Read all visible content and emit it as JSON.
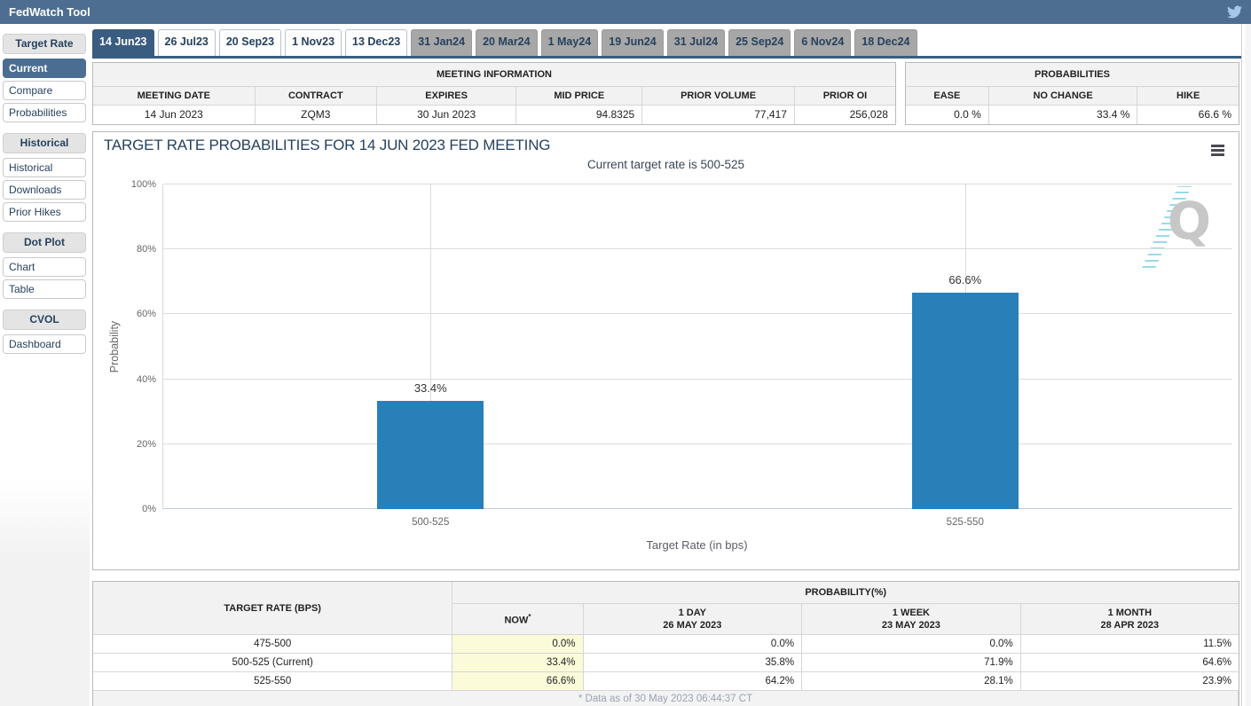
{
  "colors": {
    "topbar": "#4d6e90",
    "active_tab": "#3a5c81",
    "active_item": "#4b6d92",
    "tab_gray": "#a7a7a7",
    "navy_text": "#26415e",
    "bar": "#2980b9",
    "now_highlight": "#fbfbda"
  },
  "header": {
    "title": "FedWatch Tool",
    "social_icon": "twitter-bird"
  },
  "sidebar": {
    "groups": [
      {
        "header": "Target Rate",
        "items": [
          {
            "label": "Current",
            "active": true
          },
          {
            "label": "Compare",
            "active": false
          },
          {
            "label": "Probabilities",
            "active": false
          }
        ]
      },
      {
        "header": "Historical",
        "items": [
          {
            "label": "Historical",
            "active": false
          },
          {
            "label": "Downloads",
            "active": false
          },
          {
            "label": "Prior Hikes",
            "active": false
          }
        ]
      },
      {
        "header": "Dot Plot",
        "items": [
          {
            "label": "Chart",
            "active": false
          },
          {
            "label": "Table",
            "active": false
          }
        ]
      },
      {
        "header": "CVOL",
        "items": [
          {
            "label": "Dashboard",
            "active": false
          }
        ]
      }
    ]
  },
  "tabs": [
    {
      "label": "14 Jun23",
      "state": "active"
    },
    {
      "label": "26 Jul23",
      "state": "light"
    },
    {
      "label": "20 Sep23",
      "state": "light"
    },
    {
      "label": "1 Nov23",
      "state": "light"
    },
    {
      "label": "13 Dec23",
      "state": "light"
    },
    {
      "label": "31 Jan24",
      "state": "gray"
    },
    {
      "label": "20 Mar24",
      "state": "gray"
    },
    {
      "label": "1 May24",
      "state": "gray"
    },
    {
      "label": "19 Jun24",
      "state": "gray"
    },
    {
      "label": "31 Jul24",
      "state": "gray"
    },
    {
      "label": "25 Sep24",
      "state": "gray"
    },
    {
      "label": "6 Nov24",
      "state": "gray"
    },
    {
      "label": "18 Dec24",
      "state": "gray"
    }
  ],
  "meeting_info": {
    "title": "MEETING INFORMATION",
    "columns": [
      "MEETING DATE",
      "CONTRACT",
      "EXPIRES",
      "MID PRICE",
      "PRIOR VOLUME",
      "PRIOR OI"
    ],
    "values": [
      "14 Jun 2023",
      "ZQM3",
      "30 Jun 2023",
      "94.8325",
      "77,417",
      "256,028"
    ]
  },
  "probabilities_summary": {
    "title": "PROBABILITIES",
    "columns": [
      "EASE",
      "NO CHANGE",
      "HIKE"
    ],
    "values": [
      "0.0 %",
      "33.4 %",
      "66.6 %"
    ]
  },
  "chart": {
    "menu_icon": "hamburger-menu",
    "watermark_letter": "Q"
  },
  "chart_data": {
    "type": "bar",
    "title": "TARGET RATE PROBABILITIES FOR 14 JUN 2023 FED MEETING",
    "subtitle": "Current target rate is 500-525",
    "categories": [
      "500-525",
      "525-550"
    ],
    "values": [
      33.4,
      66.6
    ],
    "labels": [
      "33.4%",
      "66.6%"
    ],
    "xlabel": "Target Rate (in bps)",
    "ylabel": "Probability",
    "ylim": [
      0,
      100
    ],
    "yticks": [
      "0%",
      "20%",
      "40%",
      "60%",
      "80%",
      "100%"
    ],
    "grid": true,
    "legend": false,
    "bar_color": "#2980b9"
  },
  "prob_table": {
    "rate_header": "TARGET RATE (BPS)",
    "prob_header": "PROBABILITY(%)",
    "col_headers": [
      {
        "line1": "NOW",
        "sup": "*",
        "line2": ""
      },
      {
        "line1": "1 DAY",
        "line2": "26 MAY 2023"
      },
      {
        "line1": "1 WEEK",
        "line2": "23 MAY 2023"
      },
      {
        "line1": "1 MONTH",
        "line2": "28 APR 2023"
      }
    ],
    "rows": [
      {
        "rate": "475-500",
        "now": "0.0%",
        "day1": "0.0%",
        "week1": "0.0%",
        "month1": "11.5%"
      },
      {
        "rate": "500-525 (Current)",
        "now": "33.4%",
        "day1": "35.8%",
        "week1": "71.9%",
        "month1": "64.6%"
      },
      {
        "rate": "525-550",
        "now": "66.6%",
        "day1": "64.2%",
        "week1": "28.1%",
        "month1": "23.9%"
      }
    ],
    "footnote": "* Data as of 30 May 2023 06:44:37 CT"
  }
}
